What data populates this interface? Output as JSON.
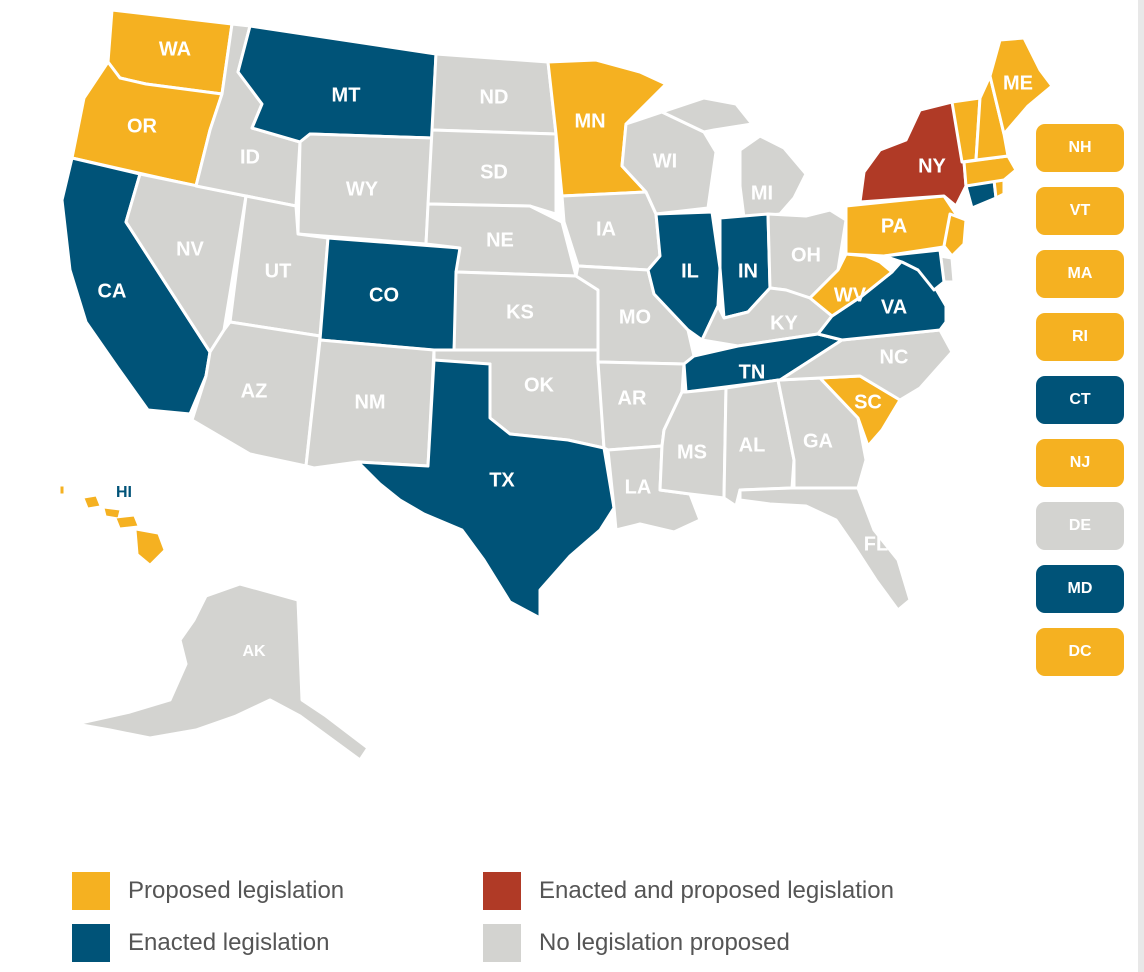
{
  "colors": {
    "proposed": "#F5B121",
    "enacted": "#005378",
    "both": "#B03A26",
    "none": "#D3D3D0"
  },
  "legend": [
    {
      "key": "proposed",
      "label": "Proposed legislation"
    },
    {
      "key": "both",
      "label": "Enacted and proposed legislation"
    },
    {
      "key": "enacted",
      "label": "Enacted legislation"
    },
    {
      "key": "none",
      "label": "No legislation proposed"
    }
  ],
  "states": {
    "WA": "proposed",
    "OR": "proposed",
    "CA": "enacted",
    "NV": "none",
    "ID": "none",
    "MT": "enacted",
    "WY": "none",
    "UT": "none",
    "AZ": "none",
    "CO": "enacted",
    "NM": "none",
    "ND": "none",
    "SD": "none",
    "NE": "none",
    "KS": "none",
    "OK": "none",
    "TX": "enacted",
    "MN": "proposed",
    "IA": "none",
    "MO": "none",
    "AR": "none",
    "LA": "none",
    "WI": "none",
    "IL": "enacted",
    "MI": "none",
    "IN": "enacted",
    "OH": "none",
    "KY": "none",
    "TN": "enacted",
    "MS": "none",
    "AL": "none",
    "GA": "none",
    "FL": "none",
    "SC": "proposed",
    "NC": "none",
    "VA": "enacted",
    "WV": "proposed",
    "PA": "proposed",
    "NY": "both",
    "ME": "proposed",
    "NH": "proposed",
    "VT": "proposed",
    "MA": "proposed",
    "RI": "proposed",
    "CT": "enacted",
    "NJ": "proposed",
    "DE": "none",
    "MD": "enacted",
    "DC": "proposed",
    "HI": "proposed",
    "AK": "none"
  },
  "side_badges": [
    {
      "abbr": "NH",
      "key": "proposed"
    },
    {
      "abbr": "VT",
      "key": "proposed"
    },
    {
      "abbr": "MA",
      "key": "proposed"
    },
    {
      "abbr": "RI",
      "key": "proposed"
    },
    {
      "abbr": "CT",
      "key": "enacted"
    },
    {
      "abbr": "NJ",
      "key": "proposed"
    },
    {
      "abbr": "DE",
      "key": "none"
    },
    {
      "abbr": "MD",
      "key": "enacted"
    },
    {
      "abbr": "DC",
      "key": "proposed"
    }
  ],
  "map_labels": {
    "WA": "WA",
    "OR": "OR",
    "CA": "CA",
    "NV": "NV",
    "ID": "ID",
    "MT": "MT",
    "WY": "WY",
    "UT": "UT",
    "AZ": "AZ",
    "CO": "CO",
    "NM": "NM",
    "ND": "ND",
    "SD": "SD",
    "NE": "NE",
    "KS": "KS",
    "OK": "OK",
    "TX": "TX",
    "MN": "MN",
    "IA": "IA",
    "MO": "MO",
    "AR": "AR",
    "LA": "LA",
    "WI": "WI",
    "IL": "IL",
    "MI": "MI",
    "IN": "IN",
    "OH": "OH",
    "KY": "KY",
    "TN": "TN",
    "MS": "MS",
    "AL": "AL",
    "GA": "GA",
    "FL": "FL",
    "SC": "SC",
    "NC": "NC",
    "VA": "VA",
    "WV": "WV",
    "PA": "PA",
    "NY": "NY",
    "ME": "ME",
    "HI": "HI",
    "AK": "AK"
  }
}
